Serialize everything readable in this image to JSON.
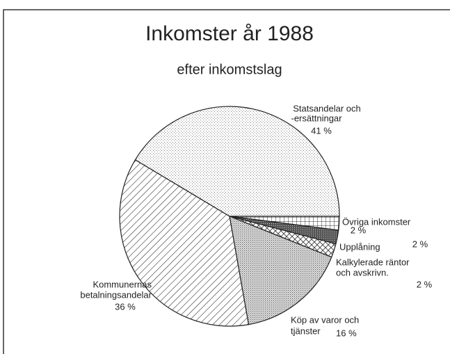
{
  "chart_data": {
    "type": "pie",
    "title": "Inkomster år 1988",
    "subtitle": "efter inkomstslag",
    "categories": [
      [
        "Statsandelar och",
        "-ersättningar"
      ],
      [
        "Övriga inkomster"
      ],
      [
        "Upplåning"
      ],
      [
        "Kalkylerade räntor",
        "och avskrivn."
      ],
      [
        "Köp av varor och",
        "tjänster"
      ],
      [
        "Kommunernas",
        "betalningsandelar"
      ]
    ],
    "values": [
      41,
      2,
      2,
      2,
      16,
      36
    ],
    "value_labels": [
      "41 %",
      "2 %",
      "2 %",
      "2 %",
      "16 %",
      "36 %"
    ]
  }
}
